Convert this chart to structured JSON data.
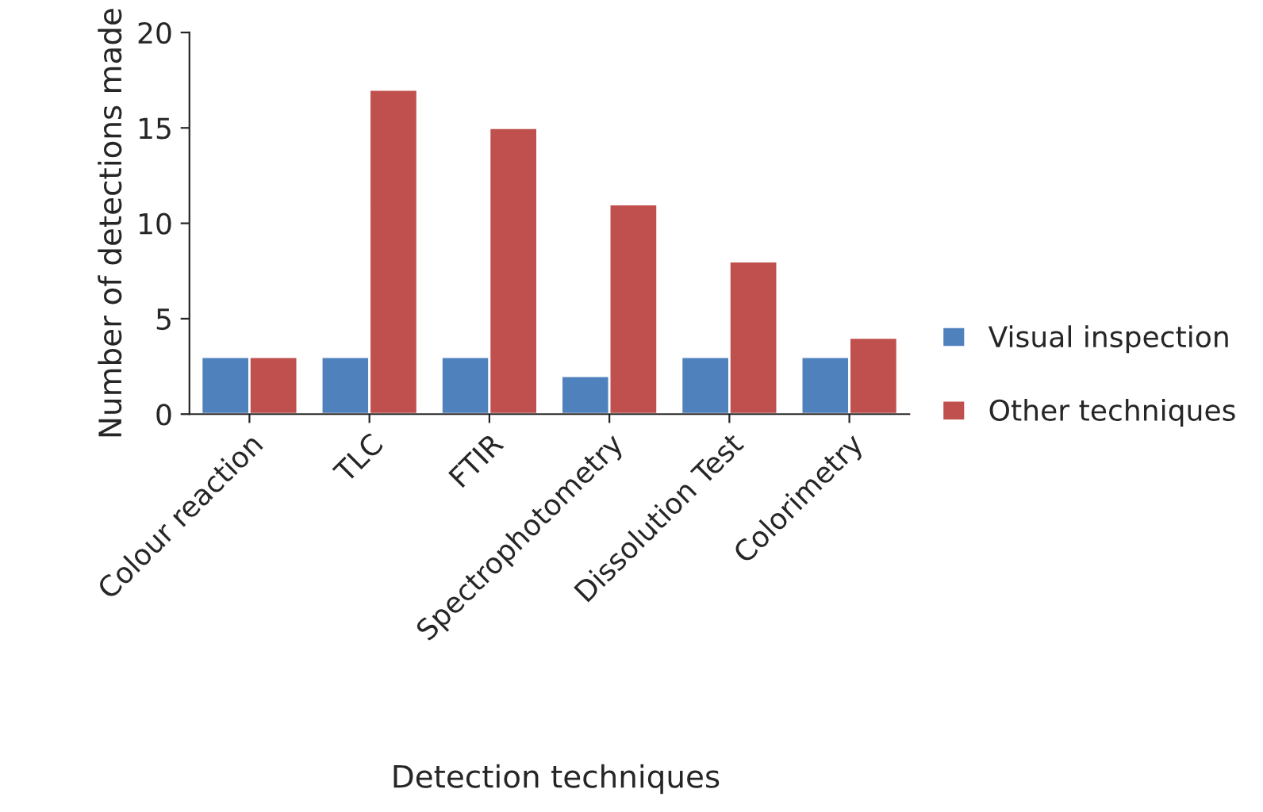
{
  "chart_data": {
    "type": "bar",
    "xlabel": "Detection techniques",
    "ylabel": "Number of detections made",
    "categories": [
      "Colour reaction",
      "TLC",
      "FTIR",
      "Spectrophotometry",
      "Dissolution Test",
      "Colorimetry"
    ],
    "series": [
      {
        "name": "Visual inspection",
        "color": "#4f81bd",
        "values": [
          3,
          3,
          3,
          2,
          3,
          3
        ]
      },
      {
        "name": "Other techniques",
        "color": "#c0504d",
        "values": [
          3,
          17,
          15,
          11,
          8,
          4
        ]
      }
    ],
    "ylim": [
      0,
      20
    ],
    "yticks": [
      0,
      5,
      10,
      15,
      20
    ],
    "grid": false,
    "legend": "right"
  }
}
